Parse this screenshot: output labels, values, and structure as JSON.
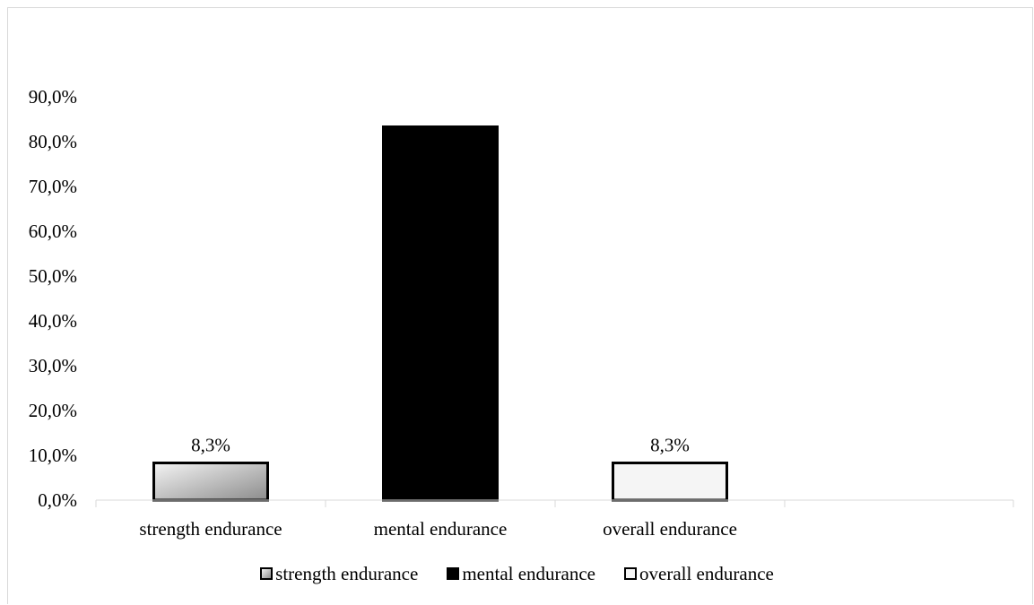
{
  "chart_data": {
    "type": "bar",
    "categories": [
      "strength endurance",
      "mental endurance",
      "overall endurance"
    ],
    "values": [
      8.3,
      83.3,
      8.3
    ],
    "data_labels": [
      "8,3%",
      "",
      "8,3%"
    ],
    "y_ticks": [
      "0,0%",
      "10,0%",
      "20,0%",
      "30,0%",
      "40,0%",
      "50,0%",
      "60,0%",
      "70,0%",
      "80,0%",
      "90,0%"
    ],
    "ylim": [
      0,
      90
    ],
    "title": "",
    "xlabel": "",
    "ylabel": "",
    "grid": false,
    "legend_position": "bottom",
    "legend": [
      "strength endurance",
      "mental endurance",
      "overall endurance"
    ],
    "bar_fills": [
      "gradient-gray",
      "#000000",
      "#f5f5f5"
    ],
    "bar_outline": "#000000",
    "axis_color": "#d9d9d9"
  }
}
